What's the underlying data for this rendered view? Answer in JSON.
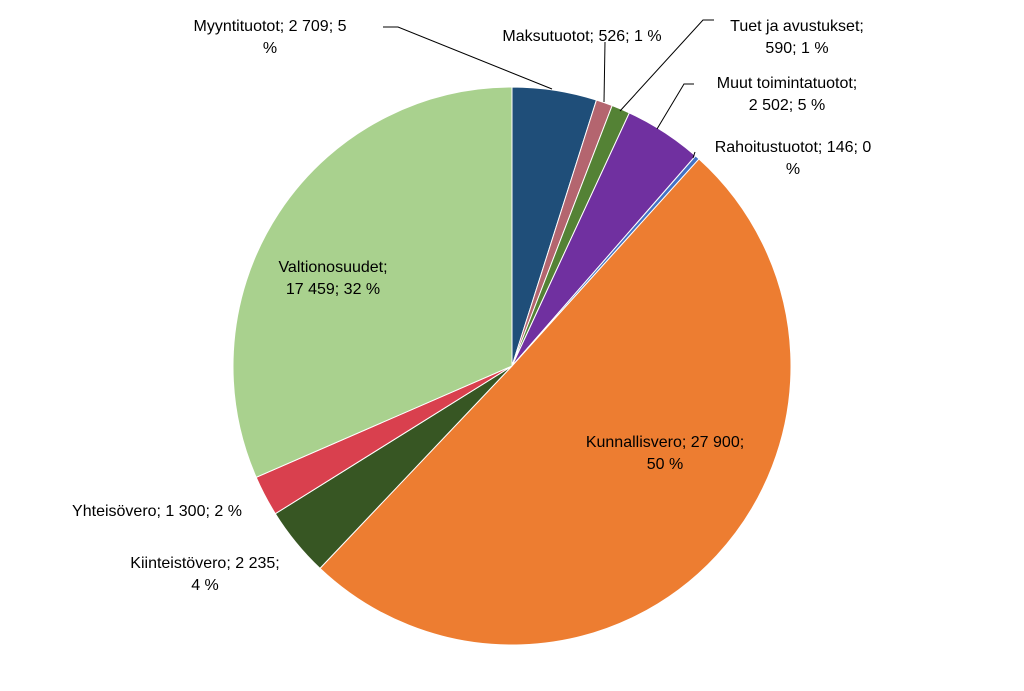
{
  "chart_data": {
    "type": "pie",
    "title": "",
    "start_angle_deg": 0,
    "direction": "clockwise",
    "slices": [
      {
        "name": "Myyntituotot",
        "value": 2709,
        "percent_label": "5 %",
        "label_lines": [
          "Myyntituotot; 2 709; 5",
          "%"
        ],
        "color": "#1F4E79"
      },
      {
        "name": "Maksutuotot",
        "value": 526,
        "percent_label": "1 %",
        "label_lines": [
          "Maksutuotot; 526; 1 %"
        ],
        "color": "#B4656F"
      },
      {
        "name": "Tuet ja avustukset",
        "value": 590,
        "percent_label": "1 %",
        "label_lines": [
          "Tuet ja avustukset;",
          "590; 1 %"
        ],
        "color": "#548235"
      },
      {
        "name": "Muut toimintatuotot",
        "value": 2502,
        "percent_label": "5 %",
        "label_lines": [
          "Muut toimintatuotot;",
          "2 502; 5 %"
        ],
        "color": "#7030A0"
      },
      {
        "name": "Rahoitustuotot",
        "value": 146,
        "percent_label": "0 %",
        "label_lines": [
          "Rahoitustuotot; 146; 0",
          "%"
        ],
        "color": "#4472C4"
      },
      {
        "name": "Kunnallisvero",
        "value": 27900,
        "percent_label": "50 %",
        "label_lines": [
          "Kunnallisvero; 27 900;",
          "50 %"
        ],
        "color": "#ED7D31"
      },
      {
        "name": "Kiinteistövero",
        "value": 2235,
        "percent_label": "4 %",
        "label_lines": [
          "Kiinteistövero; 2 235;",
          "4 %"
        ],
        "color": "#375623"
      },
      {
        "name": "Yhteisövero",
        "value": 1300,
        "percent_label": "2 %",
        "label_lines": [
          "Yhteisövero; 1 300; 2 %"
        ],
        "color": "#D9404E"
      },
      {
        "name": "Valtionosuudet",
        "value": 17459,
        "percent_label": "32 %",
        "label_lines": [
          "Valtionosuudet;",
          "17 459; 32 %"
        ],
        "color": "#A9D18E"
      }
    ]
  }
}
